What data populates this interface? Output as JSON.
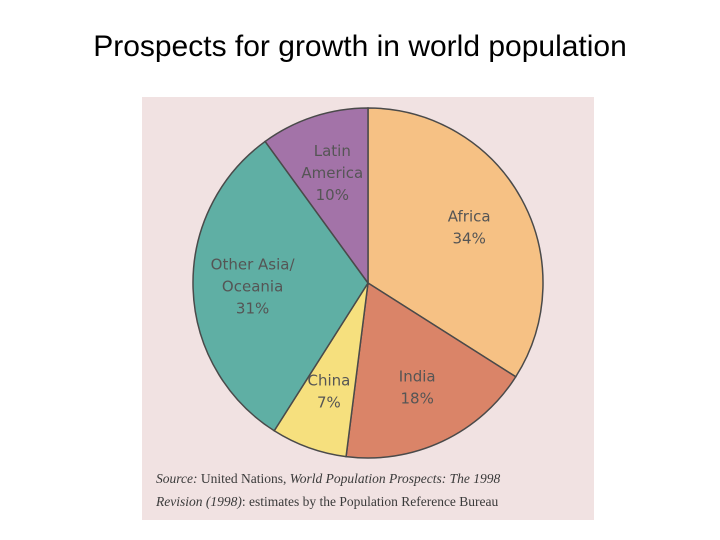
{
  "slide": {
    "title": "Prospects for growth in world population"
  },
  "colors": {
    "figure_background": "#f1e2e2",
    "pie_stroke": "#4a4a4a",
    "label_text": "#555555"
  },
  "chart_data": {
    "type": "pie",
    "title": "",
    "start_angle_deg": 0,
    "direction": "clockwise",
    "slices": [
      {
        "label_lines": [
          "Africa",
          "34%"
        ],
        "value": 34,
        "color": "#f6c184"
      },
      {
        "label_lines": [
          "India",
          "18%"
        ],
        "value": 18,
        "color": "#da8468"
      },
      {
        "label_lines": [
          "China",
          "7%"
        ],
        "value": 7,
        "color": "#f6e07e"
      },
      {
        "label_lines": [
          "Other Asia/",
          "Oceania",
          "31%"
        ],
        "value": 31,
        "color": "#5fafa4"
      },
      {
        "label_lines": [
          "Latin",
          "America",
          "10%"
        ],
        "value": 10,
        "color": "#a373a8"
      }
    ]
  },
  "source": {
    "line1_label": "Source:",
    "line1_text": " United Nations, ",
    "line1_italic": "World Population Prospects: The 1998",
    "line2_italic": "Revision (1998)",
    "line2_text": ": estimates by the Population Reference Bureau"
  }
}
